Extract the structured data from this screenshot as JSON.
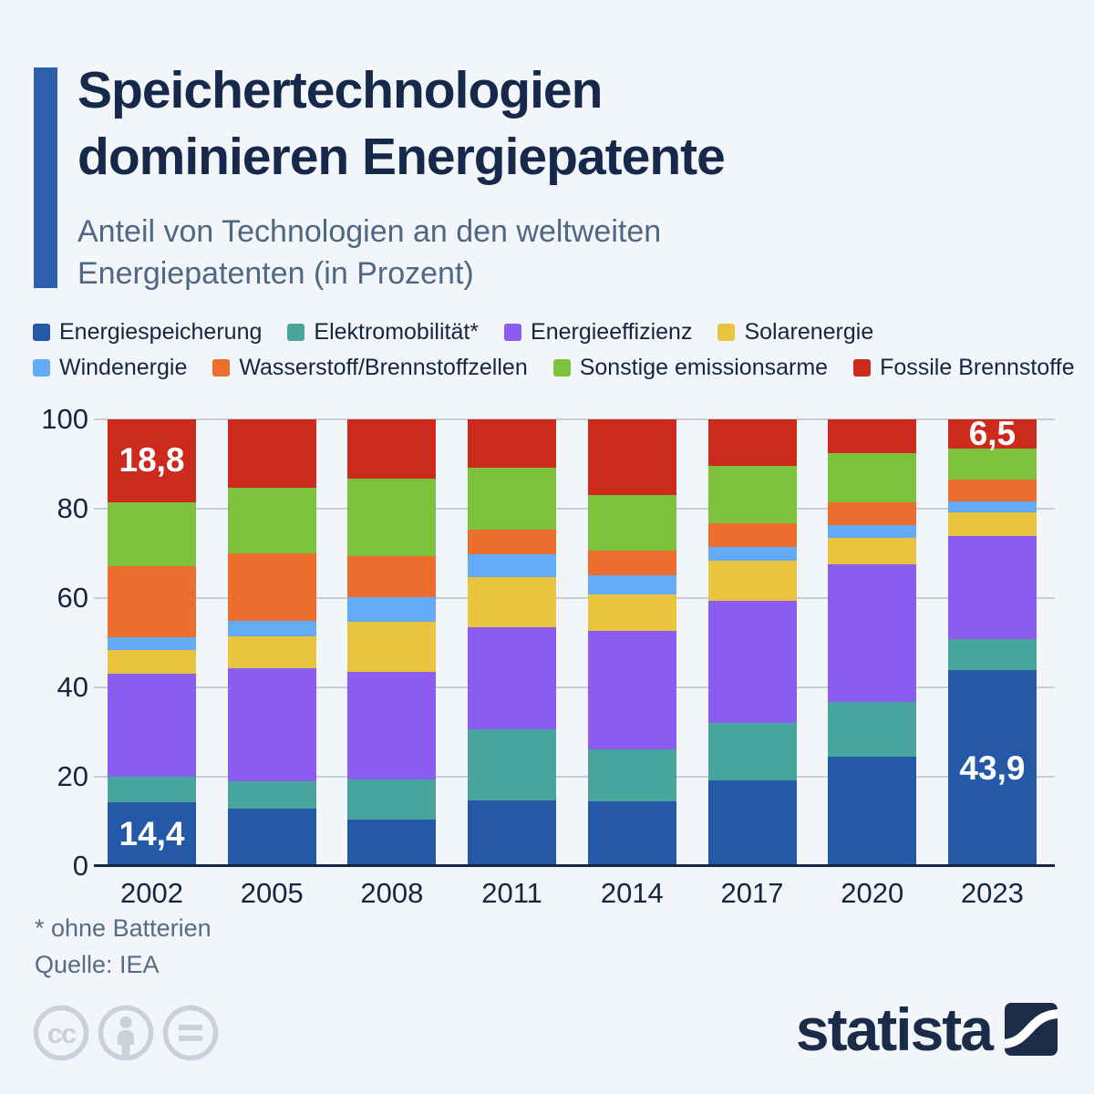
{
  "header": {
    "title_line1": "Speichertechnologien",
    "title_line2": "dominieren Energiepatente",
    "subtitle_line1": "Anteil von Technologien an den weltweiten",
    "subtitle_line2": "Energiepatenten (in Prozent)"
  },
  "chart_data": {
    "type": "bar",
    "stacked": true,
    "unit": "percent",
    "title": "Anteil von Technologien an den weltweiten Energiepatenten (in Prozent)",
    "categories": [
      "2002",
      "2005",
      "2008",
      "2011",
      "2014",
      "2017",
      "2020",
      "2023"
    ],
    "series": [
      {
        "name": "Energiespeicherung",
        "color": "#2559a8",
        "values": [
          14.4,
          12.8,
          10.4,
          14.7,
          14.4,
          19.2,
          24.4,
          43.9
        ]
      },
      {
        "name": "Elektromobilität*",
        "color": "#47a59d",
        "values": [
          5.8,
          6.2,
          9.0,
          15.9,
          11.7,
          12.9,
          12.3,
          6.9
        ]
      },
      {
        "name": "Energieeffizienz",
        "color": "#8a5cf0",
        "values": [
          23.5,
          25.2,
          24.1,
          22.8,
          26.6,
          27.3,
          30.9,
          23.1
        ]
      },
      {
        "name": "Solarenergie",
        "color": "#e9c53f",
        "values": [
          5.5,
          7.3,
          11.3,
          11.3,
          8.2,
          8.9,
          5.9,
          5.4
        ]
      },
      {
        "name": "Windenergie",
        "color": "#64abf7",
        "values": [
          2.9,
          3.4,
          5.4,
          5.1,
          4.2,
          3.2,
          2.9,
          2.4
        ]
      },
      {
        "name": "Wasserstoff/Brennstoffzellen",
        "color": "#ec6e2e",
        "values": [
          16.1,
          15.2,
          9.2,
          5.6,
          5.5,
          5.2,
          5.1,
          4.9
        ]
      },
      {
        "name": "Sonstige emissionsarme",
        "color": "#7cc23c",
        "values": [
          14.5,
          14.7,
          17.4,
          13.8,
          12.5,
          12.9,
          10.9,
          7.0
        ]
      },
      {
        "name": "Fossile Brennstoffe",
        "color": "#cd2a1e",
        "values": [
          18.8,
          15.2,
          13.2,
          10.8,
          16.9,
          10.4,
          7.6,
          6.5
        ]
      }
    ],
    "value_labels": [
      {
        "category": "2002",
        "series": "Energiespeicherung",
        "text": "14,4"
      },
      {
        "category": "2002",
        "series": "Fossile Brennstoffe",
        "text": "18,8"
      },
      {
        "category": "2023",
        "series": "Energiespeicherung",
        "text": "43,9"
      },
      {
        "category": "2023",
        "series": "Fossile Brennstoffe",
        "text": "6,5"
      }
    ],
    "yticks": [
      0,
      20,
      40,
      60,
      80,
      100
    ],
    "ylim": [
      0,
      100
    ],
    "grid": true,
    "legend_position": "top",
    "legend_rows": 2
  },
  "footer": {
    "footnote": "* ohne Batterien",
    "source": "Quelle: IEA"
  },
  "branding": {
    "logo_text": "statista"
  },
  "colors": {
    "background": "#f2f5fa",
    "accent_bar": "#2e5fad",
    "title": "#16294a",
    "subtitle": "#4e6782",
    "axis_text": "#14273f",
    "gridline": "#c7cdd7",
    "axis_line": "#14273f",
    "bar_label": "#ffffff",
    "footer_text": "#566c83",
    "license_icon": "#c9d2dc",
    "logo": "#1b2c49"
  }
}
